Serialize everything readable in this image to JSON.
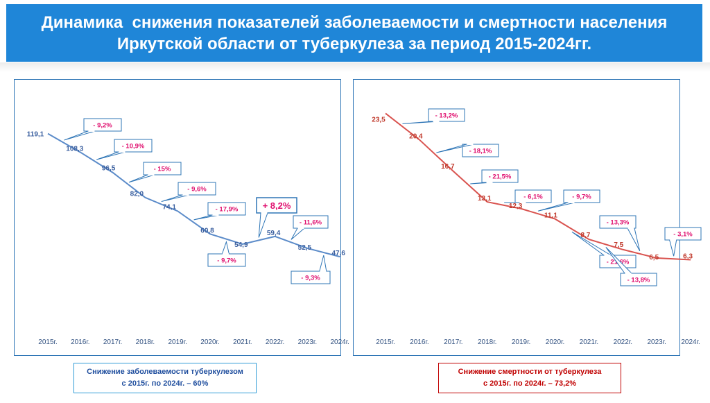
{
  "slide": {
    "title_line1": "Динамика  снижения показателей заболеваемости и смертности населения",
    "title_line2": "Иркутской области от туберкулеза за период 2015-2024гг.",
    "title_bg": "#1f86d8"
  },
  "summary_left": {
    "line1": "Снижение заболеваемости туберкулезом",
    "line2": "с 2015г. по 2024г. – 60%"
  },
  "summary_right": {
    "line1": "Снижение смертности от туберкулеза",
    "line2": "с 2015г. по 2024г. – 73,2%"
  },
  "chart_data": [
    {
      "type": "line",
      "categories": [
        "2015г.",
        "2016г.",
        "2017г.",
        "2018г.",
        "2019г.",
        "2020г.",
        "2021г.",
        "2022г.",
        "2023г.",
        "2024г."
      ],
      "values": [
        119.1,
        108.3,
        96.5,
        82.0,
        74.1,
        60.8,
        54.9,
        59.4,
        52.5,
        47.6
      ],
      "value_labels": [
        "119,1",
        "108,3",
        "96,5",
        "82,0",
        "74,1",
        "60,8",
        "54,9",
        "59,4",
        "52,5",
        "47,6"
      ],
      "changes": [
        "- 9,2%",
        "- 10,9%",
        "- 15%",
        "- 9,6%",
        "- 17,9%",
        "- 9,7%",
        "+ 8,2%",
        "- 11,6%",
        "- 9,3%"
      ],
      "ylim": [
        40,
        125
      ],
      "grid": false,
      "line_color": "#5b8bc9",
      "label_color": "#3a5f9f",
      "change_color": "#e0106f",
      "callout_border": "#2e75b6"
    },
    {
      "type": "line",
      "categories": [
        "2015г.",
        "2016г.",
        "2017г.",
        "2018г.",
        "2019г.",
        "2020г.",
        "2021г.",
        "2022г.",
        "2023г.",
        "2024г."
      ],
      "values": [
        23.5,
        20.4,
        16.7,
        13.1,
        12.3,
        11.1,
        8.7,
        7.5,
        6.5,
        6.3
      ],
      "value_labels": [
        "23,5",
        "20,4",
        "16,7",
        "13,1",
        "12,3",
        "11,1",
        "8,7",
        "7,5",
        "6,5",
        "6,3"
      ],
      "changes": [
        "- 13,2%",
        "- 18,1%",
        "- 21,5%",
        "- 6,1%",
        "- 9,7%",
        "- 21,6%",
        "- 13,8%",
        "- 13,3%",
        "- 3,1%"
      ],
      "ylim": [
        3,
        25
      ],
      "grid": false,
      "line_color": "#d9534f",
      "label_color": "#c0392b",
      "change_color": "#e0106f",
      "callout_border": "#2e75b6"
    }
  ]
}
